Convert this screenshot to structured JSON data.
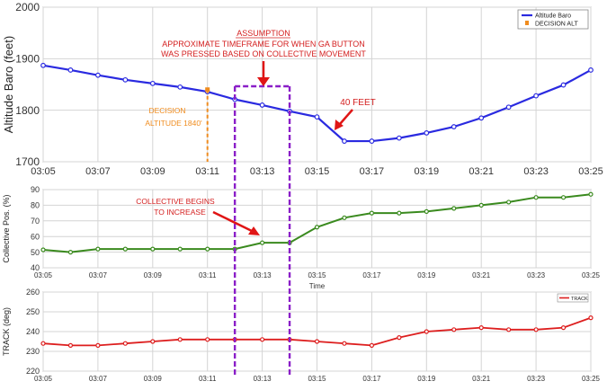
{
  "chart_data": [
    {
      "type": "line",
      "ylabel": "Altitude Baro (feet)",
      "xlabel": "",
      "ylim": [
        1700,
        2000
      ],
      "yticks": [
        "1700",
        "1800",
        "1900",
        "2000"
      ],
      "xticks": [
        "03:05",
        "03:07",
        "03:09",
        "03:11",
        "03:13",
        "03:15",
        "03:17",
        "03:19",
        "03:21",
        "03:23",
        "03:25"
      ],
      "grid": true,
      "legend_position": "top-right",
      "series": [
        {
          "name": "Altitude Baro",
          "color": "#2a2ae0",
          "x": [
            "03:05",
            "03:06",
            "03:07",
            "03:08",
            "03:09",
            "03:10",
            "03:11",
            "03:12",
            "03:13",
            "03:14",
            "03:15",
            "03:16",
            "03:17",
            "03:18",
            "03:19",
            "03:20",
            "03:21",
            "03:22",
            "03:23",
            "03:24",
            "03:25"
          ],
          "values": [
            1887,
            1878,
            1868,
            1859,
            1852,
            1845,
            1836,
            1821,
            1810,
            1798,
            1787,
            1740,
            1740,
            1746,
            1756,
            1768,
            1785,
            1806,
            1828,
            1849,
            1878
          ]
        },
        {
          "name": "DECISION ALT",
          "color": "#f08c1e",
          "x": [
            "03:11",
            "03:11"
          ],
          "values": [
            1840,
            1700
          ]
        }
      ],
      "annotations": {
        "assumption_title": "ASSUMPTION",
        "assumption_line1": "APPROXIMATE TIMEFRAME FOR WHEN GA BUTTON",
        "assumption_line2": "WAS PRESSED BASED ON COLLECTIVE MOVEMENT",
        "decision_line1": "DECISION",
        "decision_line2": "ALTITUDE 1840'",
        "forty_feet": "40 FEET"
      }
    },
    {
      "type": "line",
      "ylabel": "Collective Pos. (%)",
      "xlabel": "Time",
      "ylim": [
        40,
        90
      ],
      "yticks": [
        "40",
        "50",
        "60",
        "70",
        "80",
        "90"
      ],
      "xticks": [
        "03:05",
        "03:07",
        "03:09",
        "03:11",
        "03:13",
        "03:15",
        "03:17",
        "03:19",
        "03:21",
        "03:23",
        "03:25"
      ],
      "grid": true,
      "series": [
        {
          "name": "",
          "color": "#3a8a1e",
          "x": [
            "03:05",
            "03:06",
            "03:07",
            "03:08",
            "03:09",
            "03:10",
            "03:11",
            "03:12",
            "03:13",
            "03:14",
            "03:15",
            "03:16",
            "03:17",
            "03:18",
            "03:19",
            "03:20",
            "03:21",
            "03:22",
            "03:23",
            "03:24",
            "03:25"
          ],
          "values": [
            51.5,
            50,
            52,
            52,
            52,
            52,
            52,
            52,
            56,
            56,
            66,
            72,
            75,
            75,
            76,
            78,
            80,
            82,
            85,
            85,
            87
          ]
        }
      ],
      "annotations": {
        "collective_line1": "COLLECTIVE BEGINS",
        "collective_line2": "TO INCREASE"
      }
    },
    {
      "type": "line",
      "ylabel": "TRACK (deg)",
      "xlabel": "",
      "ylim": [
        220,
        260
      ],
      "yticks": [
        "220",
        "230",
        "240",
        "250",
        "260"
      ],
      "xticks": [
        "03:05",
        "03:07",
        "03:09",
        "03:11",
        "03:13",
        "03:15",
        "03:17",
        "03:19",
        "03:21",
        "03:23",
        "03:25"
      ],
      "grid": true,
      "legend_position": "top-right",
      "series": [
        {
          "name": "TRACK",
          "color": "#dd1e1e",
          "x": [
            "03:05",
            "03:06",
            "03:07",
            "03:08",
            "03:09",
            "03:10",
            "03:11",
            "03:12",
            "03:13",
            "03:14",
            "03:15",
            "03:16",
            "03:17",
            "03:18",
            "03:19",
            "03:20",
            "03:21",
            "03:22",
            "03:23",
            "03:24",
            "03:25"
          ],
          "values": [
            234,
            233,
            233,
            234,
            235,
            236,
            236,
            236,
            236,
            236,
            235,
            234,
            233,
            237,
            240,
            241,
            242,
            241,
            241,
            242,
            247
          ]
        }
      ]
    }
  ],
  "highlight_window": {
    "start": "03:12",
    "end": "03:14",
    "color": "#8a1ec8"
  }
}
